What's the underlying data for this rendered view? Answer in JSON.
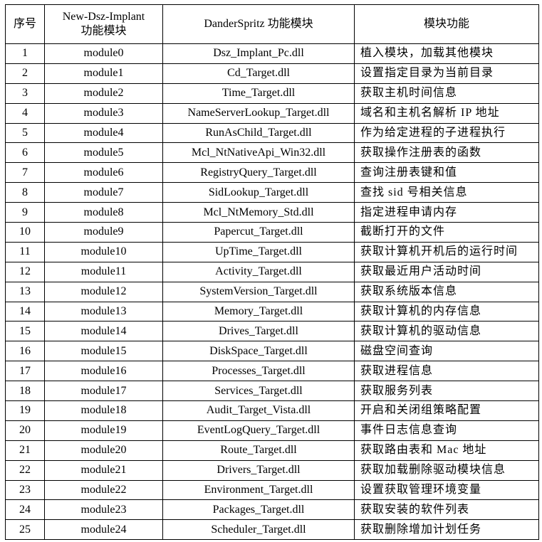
{
  "headers": [
    "序号",
    "New-Dsz-Implant\n功能模块",
    "DanderSpritz 功能模块",
    "模块功能"
  ],
  "header_lines": {
    "col2_line1": "New-Dsz-Implant",
    "col2_line2": "功能模块"
  },
  "rows": [
    [
      "1",
      "module0",
      "Dsz_Implant_Pc.dll",
      "植入模块，加载其他模块"
    ],
    [
      "2",
      "module1",
      "Cd_Target.dll",
      "设置指定目录为当前目录"
    ],
    [
      "3",
      "module2",
      "Time_Target.dll",
      "获取主机时间信息"
    ],
    [
      "4",
      "module3",
      "NameServerLookup_Target.dll",
      "域名和主机名解析 IP 地址"
    ],
    [
      "5",
      "module4",
      "RunAsChild_Target.dll",
      "作为给定进程的子进程执行"
    ],
    [
      "6",
      "module5",
      "Mcl_NtNativeApi_Win32.dll",
      "获取操作注册表的函数"
    ],
    [
      "7",
      "module6",
      "RegistryQuery_Target.dll",
      "查询注册表键和值"
    ],
    [
      "8",
      "module7",
      "SidLookup_Target.dll",
      "查找 sid 号相关信息"
    ],
    [
      "9",
      "module8",
      "Mcl_NtMemory_Std.dll",
      "指定进程申请内存"
    ],
    [
      "10",
      "module9",
      "Papercut_Target.dll",
      "截断打开的文件"
    ],
    [
      "11",
      "module10",
      "UpTime_Target.dll",
      "获取计算机开机后的运行时间"
    ],
    [
      "12",
      "module11",
      "Activity_Target.dll",
      "获取最近用户活动时间"
    ],
    [
      "13",
      "module12",
      "SystemVersion_Target.dll",
      "获取系统版本信息"
    ],
    [
      "14",
      "module13",
      "Memory_Target.dll",
      "获取计算机的内存信息"
    ],
    [
      "15",
      "module14",
      "Drives_Target.dll",
      "获取计算机的驱动信息"
    ],
    [
      "16",
      "module15",
      "DiskSpace_Target.dll",
      "磁盘空间查询"
    ],
    [
      "17",
      "module16",
      "Processes_Target.dll",
      "获取进程信息"
    ],
    [
      "18",
      "module17",
      "Services_Target.dll",
      "获取服务列表"
    ],
    [
      "19",
      "module18",
      "Audit_Target_Vista.dll",
      "开启和关闭组策略配置"
    ],
    [
      "20",
      "module19",
      "EventLogQuery_Target.dll",
      "事件日志信息查询"
    ],
    [
      "21",
      "module20",
      "Route_Target.dll",
      "获取路由表和 Mac 地址"
    ],
    [
      "22",
      "module21",
      "Drivers_Target.dll",
      "获取加载删除驱动模块信息"
    ],
    [
      "23",
      "module22",
      "Environment_Target.dll",
      "设置获取管理环境变量"
    ],
    [
      "24",
      "module23",
      "Packages_Target.dll",
      "获取安装的软件列表"
    ],
    [
      "25",
      "module24",
      "Scheduler_Target.dll",
      "获取删除增加计划任务"
    ]
  ]
}
